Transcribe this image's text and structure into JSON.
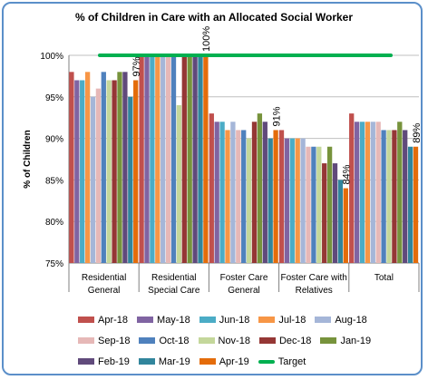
{
  "chart_data": {
    "type": "bar",
    "title": "% of Children in Care with an Allocated Social Worker",
    "ylabel": "% of Children",
    "xlabel": "",
    "ylim": [
      75,
      100
    ],
    "yticks": [
      "75%",
      "80%",
      "85%",
      "90%",
      "95%",
      "100%"
    ],
    "categories": [
      [
        "Residential",
        "General"
      ],
      [
        "Residential",
        "Special Care"
      ],
      [
        "Foster Care",
        "General"
      ],
      [
        "Foster Care with",
        "Relatives"
      ],
      [
        "Total"
      ]
    ],
    "series": [
      {
        "name": "Apr-18",
        "color": "#c0504d",
        "values": [
          98,
          100,
          93,
          91,
          93
        ]
      },
      {
        "name": "May-18",
        "color": "#8064a2",
        "values": [
          97,
          100,
          92,
          90,
          92
        ]
      },
      {
        "name": "Jun-18",
        "color": "#4bacc6",
        "values": [
          97,
          100,
          92,
          90,
          92
        ]
      },
      {
        "name": "Jul-18",
        "color": "#f79646",
        "values": [
          98,
          100,
          91,
          90,
          92
        ]
      },
      {
        "name": "Aug-18",
        "color": "#a5b6d8",
        "values": [
          95,
          100,
          92,
          90,
          92
        ]
      },
      {
        "name": "Sep-18",
        "color": "#e6b8b7",
        "values": [
          96,
          100,
          91,
          89,
          92
        ]
      },
      {
        "name": "Oct-18",
        "color": "#4f81bd",
        "values": [
          98,
          100,
          91,
          89,
          91
        ]
      },
      {
        "name": "Nov-18",
        "color": "#c4d79b",
        "values": [
          97,
          94,
          90,
          89,
          91
        ]
      },
      {
        "name": "Dec-18",
        "color": "#953735",
        "values": [
          97,
          100,
          92,
          87,
          91
        ]
      },
      {
        "name": "Jan-19",
        "color": "#77933c",
        "values": [
          98,
          100,
          93,
          89,
          92
        ]
      },
      {
        "name": "Feb-19",
        "color": "#604a7b",
        "values": [
          98,
          100,
          92,
          87,
          91
        ]
      },
      {
        "name": "Mar-19",
        "color": "#31859c",
        "values": [
          95,
          100,
          90,
          85,
          89
        ]
      },
      {
        "name": "Apr-19",
        "color": "#e46c0a",
        "values": [
          97,
          100,
          91,
          84,
          89
        ]
      }
    ],
    "target": {
      "name": "Target",
      "value": 100,
      "color": "#00b050"
    },
    "data_labels": [
      "97%",
      "100%",
      "91%",
      "84%",
      "89%"
    ],
    "legend_position": "bottom"
  }
}
